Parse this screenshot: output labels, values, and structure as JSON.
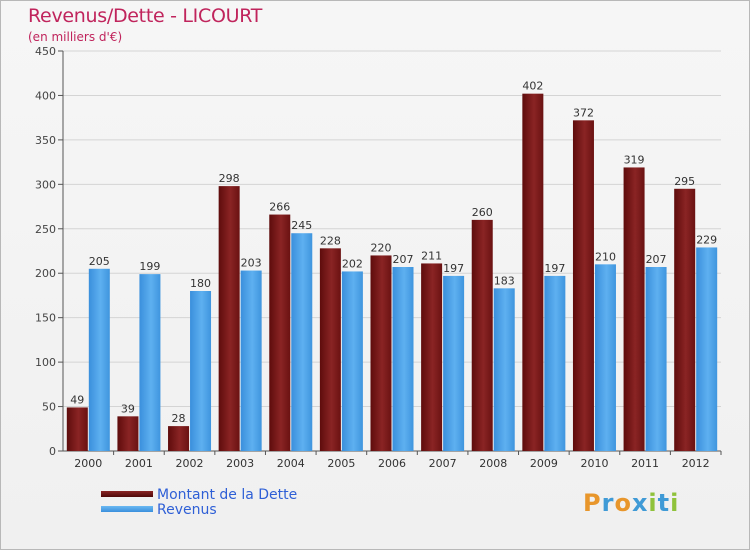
{
  "title": "Revenus/Dette - LICOURT",
  "subtitle": "(en milliers d'€)",
  "colors": {
    "debt": "#7a1818",
    "revenue": "#4a9fe6",
    "title": "#c0245c",
    "legend_text": "#2e5fd6"
  },
  "legend": [
    {
      "name": "Montant de la Dette",
      "color": "#6b0f0f"
    },
    {
      "name": "Revenus",
      "color": "#4a9fe6"
    }
  ],
  "logo": {
    "letters": [
      "P",
      "r",
      "o",
      "x",
      "i",
      "t",
      "i"
    ],
    "colors": [
      "#e8962b",
      "#3f9ad6",
      "#e8962b",
      "#3f9ad6",
      "#8fc23b",
      "#3f9ad6",
      "#8fc23b"
    ]
  },
  "chart_data": {
    "type": "bar",
    "title": "Revenus/Dette - LICOURT",
    "ylabel": "(en milliers d'€)",
    "ylim": [
      0,
      450
    ],
    "yticks": [
      0,
      50,
      100,
      150,
      200,
      250,
      300,
      350,
      400,
      450
    ],
    "grid": true,
    "legend_position": "bottom-left",
    "categories": [
      "2000",
      "2001",
      "2002",
      "2003",
      "2004",
      "2005",
      "2006",
      "2007",
      "2008",
      "2009",
      "2010",
      "2011",
      "2012"
    ],
    "series": [
      {
        "name": "Montant de la Dette",
        "values": [
          49,
          39,
          28,
          298,
          266,
          228,
          220,
          211,
          260,
          402,
          372,
          319,
          295
        ]
      },
      {
        "name": "Revenus",
        "values": [
          205,
          199,
          180,
          203,
          245,
          202,
          207,
          197,
          183,
          197,
          210,
          207,
          229
        ]
      }
    ]
  }
}
